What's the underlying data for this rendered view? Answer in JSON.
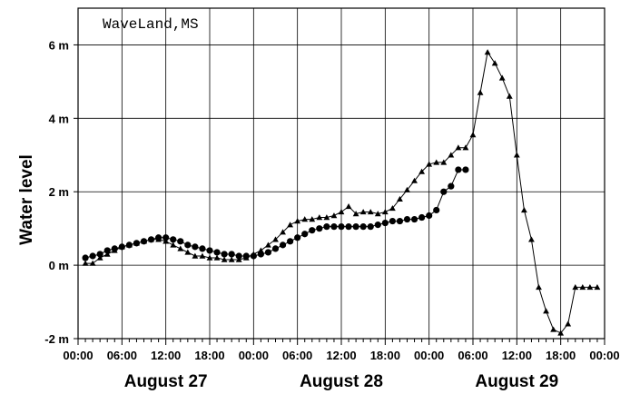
{
  "chart_data": {
    "type": "line",
    "title": "WaveLand,MS",
    "ylabel": "Water level",
    "xlabel": "",
    "ylim": [
      -2,
      7
    ],
    "xlim": [
      0,
      72
    ],
    "grid": true,
    "x_tick_labels": [
      "00:00",
      "06:00",
      "12:00",
      "18:00",
      "00:00",
      "06:00",
      "12:00",
      "18:00",
      "00:00",
      "06:00",
      "12:00",
      "18:00",
      "00:00"
    ],
    "y_tick_labels": [
      "-2 m",
      "0 m",
      "2 m",
      "4 m",
      "6 m"
    ],
    "y_tick_values": [
      -2,
      0,
      2,
      4,
      6
    ],
    "day_labels": [
      "August 27",
      "August 28",
      "August 29"
    ],
    "series": [
      {
        "marker": "triangle",
        "x": [
          1,
          2,
          3,
          4,
          5,
          6,
          7,
          8,
          9,
          10,
          11,
          12,
          13,
          14,
          15,
          16,
          17,
          18,
          19,
          20,
          21,
          22,
          23,
          24,
          25,
          26,
          27,
          28,
          29,
          30,
          31,
          32,
          33,
          34,
          35,
          36,
          37,
          38,
          39,
          40,
          41,
          42,
          43,
          44,
          45,
          46,
          47,
          48,
          49,
          50,
          51,
          52,
          53,
          54,
          55,
          56,
          57,
          58,
          59,
          60,
          61,
          62,
          63,
          64,
          65,
          66,
          67,
          68,
          69,
          70,
          71
        ],
        "y": [
          0.05,
          0.05,
          0.2,
          0.3,
          0.4,
          0.5,
          0.55,
          0.6,
          0.65,
          0.7,
          0.7,
          0.65,
          0.55,
          0.45,
          0.35,
          0.25,
          0.25,
          0.2,
          0.2,
          0.15,
          0.15,
          0.15,
          0.2,
          0.3,
          0.4,
          0.55,
          0.7,
          0.9,
          1.1,
          1.2,
          1.25,
          1.25,
          1.3,
          1.3,
          1.35,
          1.45,
          1.6,
          1.4,
          1.45,
          1.45,
          1.4,
          1.45,
          1.55,
          1.8,
          2.05,
          2.3,
          2.55,
          2.75,
          2.8,
          2.8,
          3.0,
          3.2,
          3.2,
          3.55,
          4.7,
          5.8,
          5.5,
          5.1,
          4.6,
          3.0,
          1.5,
          0.7,
          -0.6,
          -1.25,
          -1.75,
          -1.85,
          -1.6,
          -0.6,
          -0.6,
          -0.6,
          -0.6
        ]
      },
      {
        "marker": "circle",
        "x": [
          1,
          2,
          3,
          4,
          5,
          6,
          7,
          8,
          9,
          10,
          11,
          12,
          13,
          14,
          15,
          16,
          17,
          18,
          19,
          20,
          21,
          22,
          23,
          24,
          25,
          26,
          27,
          28,
          29,
          30,
          31,
          32,
          33,
          34,
          35,
          36,
          37,
          38,
          39,
          40,
          41,
          42,
          43,
          44,
          45,
          46,
          47,
          48,
          49,
          50,
          51,
          52,
          53
        ],
        "y": [
          0.2,
          0.25,
          0.3,
          0.4,
          0.45,
          0.5,
          0.55,
          0.6,
          0.65,
          0.7,
          0.75,
          0.75,
          0.7,
          0.65,
          0.55,
          0.5,
          0.45,
          0.4,
          0.35,
          0.3,
          0.3,
          0.25,
          0.25,
          0.25,
          0.3,
          0.35,
          0.45,
          0.55,
          0.65,
          0.75,
          0.85,
          0.95,
          1.0,
          1.05,
          1.05,
          1.05,
          1.05,
          1.05,
          1.05,
          1.05,
          1.1,
          1.15,
          1.2,
          1.2,
          1.25,
          1.25,
          1.3,
          1.35,
          1.5,
          2.0,
          2.15,
          2.6,
          2.6
        ]
      }
    ]
  }
}
